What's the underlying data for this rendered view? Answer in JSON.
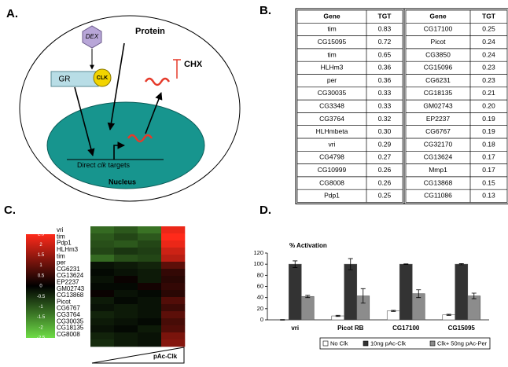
{
  "panel_labels": [
    "A.",
    "B.",
    "C.",
    "D."
  ],
  "diagram": {
    "dex": "DEX",
    "gr": "GR",
    "clk": "CLK",
    "protein": "Protein",
    "chx": "CHX",
    "targets": {
      "pre": "Direct",
      "italic": "clk",
      "post": "targets"
    },
    "nucleus": "Nucleus"
  },
  "tables": [
    {
      "header": [
        "Gene",
        "TGT"
      ],
      "rows": [
        [
          "tim",
          "0.83"
        ],
        [
          "CG15095",
          "0.72"
        ],
        [
          "tim",
          "0.65"
        ],
        [
          "HLHm3",
          "0.36"
        ],
        [
          "per",
          "0.36"
        ],
        [
          "CG30035",
          "0.33"
        ],
        [
          "CG3348",
          "0.33"
        ],
        [
          "CG3764",
          "0.32"
        ],
        [
          "HLHmbeta",
          "0.30"
        ],
        [
          "vri",
          "0.29"
        ],
        [
          "CG4798",
          "0.27"
        ],
        [
          "CG10999",
          "0.26"
        ],
        [
          "CG8008",
          "0.26"
        ],
        [
          "Pdp1",
          "0.25"
        ]
      ]
    },
    {
      "header": [
        "Gene",
        "TGT"
      ],
      "rows": [
        [
          "CG17100",
          "0.25"
        ],
        [
          "Picot",
          "0.24"
        ],
        [
          "CG3850",
          "0.24"
        ],
        [
          "CG15096",
          "0.23"
        ],
        [
          "CG6231",
          "0.23"
        ],
        [
          "CG18135",
          "0.21"
        ],
        [
          "GM02743",
          "0.20"
        ],
        [
          "EP2237",
          "0.19"
        ],
        [
          "CG6767",
          "0.19"
        ],
        [
          "CG32170",
          "0.18"
        ],
        [
          "CG13624",
          "0.17"
        ],
        [
          "Mmp1",
          "0.17"
        ],
        [
          "CG13868",
          "0.15"
        ],
        [
          "CG11086",
          "0.13"
        ]
      ]
    }
  ],
  "chart_data": [
    {
      "type": "heatmap",
      "x_label": "pAc-Clk",
      "rows": [
        "vri",
        "tim",
        "Pdp1",
        "HLHm3",
        "tim",
        "per",
        "CG6231",
        "CG13624",
        "EP2237",
        "GM02743",
        "CG13868",
        "Picot",
        "CG6767",
        "CG3764",
        "CG30035",
        "CG18135",
        "CG8008"
      ],
      "values": [
        [
          -1.2,
          -1.0,
          -1.3,
          2.3
        ],
        [
          -1.0,
          -0.8,
          -1.0,
          2.5
        ],
        [
          -0.9,
          -1.0,
          -0.8,
          2.3
        ],
        [
          -0.8,
          -0.6,
          -0.7,
          2.0
        ],
        [
          -1.2,
          -0.9,
          -0.8,
          1.8
        ],
        [
          -0.2,
          -0.3,
          -0.4,
          0.9
        ],
        [
          -0.1,
          -0.2,
          -0.3,
          0.5
        ],
        [
          -0.2,
          0.1,
          -0.3,
          0.4
        ],
        [
          -0.1,
          -0.1,
          0.2,
          0.5
        ],
        [
          0.1,
          -0.2,
          -0.1,
          0.4
        ],
        [
          -0.3,
          -0.1,
          -0.2,
          0.8
        ],
        [
          -0.2,
          -0.3,
          -0.2,
          0.6
        ],
        [
          -0.4,
          -0.3,
          -0.2,
          0.9
        ],
        [
          -0.3,
          -0.2,
          -0.1,
          0.7
        ],
        [
          -0.2,
          -0.1,
          -0.3,
          0.8
        ],
        [
          -0.4,
          -0.3,
          -0.2,
          1.2
        ],
        [
          -0.5,
          -0.3,
          -0.2,
          1.3
        ]
      ],
      "zlim": [
        -2.5,
        2.5
      ],
      "zticks": [
        2.5,
        2,
        1.5,
        1,
        0.5,
        0,
        -0.5,
        -1,
        -1.5,
        -2,
        -2.5
      ]
    },
    {
      "type": "bar",
      "y_label": "% Activation",
      "categories": [
        "vri",
        "Picot RB",
        "CG17100",
        "CG15095"
      ],
      "series": [
        {
          "name": "No Clk",
          "color": "#ffffff",
          "values": [
            0,
            7,
            16,
            9
          ],
          "errors": [
            0.5,
            1,
            1,
            1
          ]
        },
        {
          "name": "10ng pAc-Clk",
          "color": "#333333",
          "values": [
            100,
            100,
            100,
            100
          ],
          "errors": [
            6,
            10,
            0.5,
            1
          ]
        },
        {
          "name": "Clk+ 50ng pAc-Per",
          "color": "#8c8c8c",
          "values": [
            42,
            43,
            47,
            43
          ],
          "errors": [
            2,
            13,
            7,
            5
          ]
        }
      ],
      "ylim": [
        0,
        120
      ],
      "yticks": [
        0,
        20,
        40,
        60,
        80,
        100,
        120
      ]
    }
  ]
}
